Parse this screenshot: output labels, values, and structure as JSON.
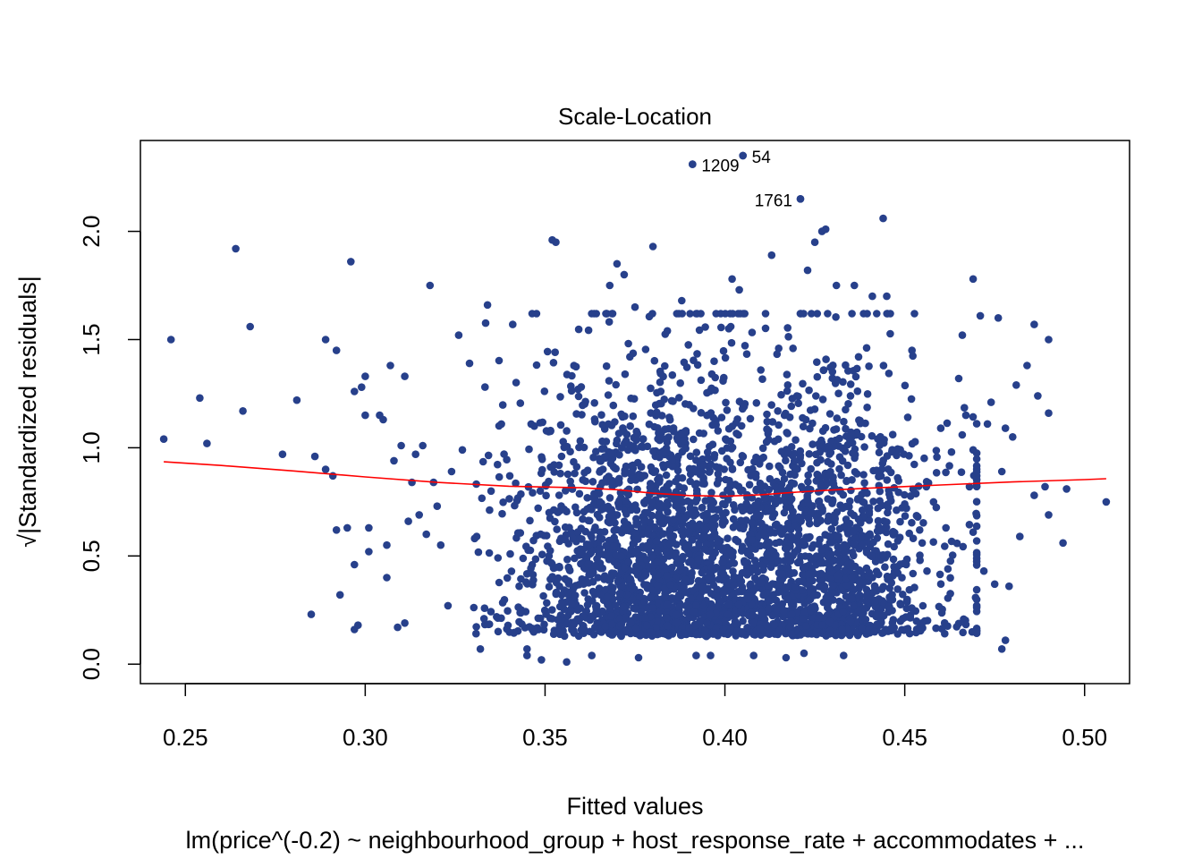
{
  "chart_data": {
    "type": "scatter",
    "title": "Scale-Location",
    "xlabel": "Fitted values",
    "ylabel": "√|Standardized residuals|",
    "subtitle": "lm(price^(-0.2) ~ neighbourhood_group + host_response_rate + accommodates + ...",
    "xlim": [
      0.2375,
      0.5125
    ],
    "ylim": [
      -0.09,
      2.42
    ],
    "x_ticks": [
      "0.25",
      "0.30",
      "0.35",
      "0.40",
      "0.45",
      "0.50"
    ],
    "x_tick_values": [
      0.25,
      0.3,
      0.35,
      0.4,
      0.45,
      0.5
    ],
    "y_ticks": [
      "0.0",
      "0.5",
      "1.0",
      "1.5",
      "2.0"
    ],
    "y_tick_values": [
      0.0,
      0.5,
      1.0,
      1.5,
      2.0
    ],
    "grid": false,
    "point_color": "#27408B",
    "smoother_color": "#FF0000",
    "points": [
      [
        0.244,
        1.04
      ],
      [
        0.246,
        1.5
      ],
      [
        0.254,
        1.23
      ],
      [
        0.256,
        1.02
      ],
      [
        0.264,
        1.92
      ],
      [
        0.266,
        1.17
      ],
      [
        0.268,
        1.56
      ],
      [
        0.277,
        0.97
      ],
      [
        0.281,
        1.22
      ],
      [
        0.285,
        0.23
      ],
      [
        0.286,
        0.96
      ],
      [
        0.289,
        0.9
      ],
      [
        0.289,
        1.5
      ],
      [
        0.291,
        0.87
      ],
      [
        0.292,
        1.45
      ],
      [
        0.292,
        0.62
      ],
      [
        0.293,
        0.32
      ],
      [
        0.295,
        0.63
      ],
      [
        0.296,
        1.86
      ],
      [
        0.297,
        1.26
      ],
      [
        0.297,
        0.46
      ],
      [
        0.297,
        0.16
      ],
      [
        0.298,
        0.18
      ],
      [
        0.299,
        1.28
      ],
      [
        0.3,
        1.15
      ],
      [
        0.3,
        1.33
      ],
      [
        0.301,
        0.63
      ],
      [
        0.301,
        0.52
      ],
      [
        0.304,
        1.15
      ],
      [
        0.305,
        1.13
      ],
      [
        0.306,
        0.4
      ],
      [
        0.306,
        0.55
      ],
      [
        0.307,
        1.38
      ],
      [
        0.308,
        0.94
      ],
      [
        0.309,
        0.17
      ],
      [
        0.31,
        1.01
      ],
      [
        0.311,
        0.19
      ],
      [
        0.311,
        1.33
      ],
      [
        0.312,
        0.66
      ],
      [
        0.313,
        0.84
      ],
      [
        0.314,
        0.97
      ],
      [
        0.315,
        0.69
      ],
      [
        0.316,
        1.01
      ],
      [
        0.317,
        0.6
      ],
      [
        0.318,
        1.75
      ],
      [
        0.319,
        0.84
      ],
      [
        0.32,
        0.73
      ],
      [
        0.321,
        0.55
      ],
      [
        0.323,
        0.27
      ],
      [
        0.324,
        0.89
      ],
      [
        0.326,
        1.52
      ],
      [
        0.327,
        0.99
      ],
      [
        0.329,
        1.39
      ],
      [
        0.331,
        0.59
      ],
      [
        0.332,
        0.07
      ],
      [
        0.334,
        1.66
      ],
      [
        0.335,
        0.8
      ],
      [
        0.341,
        1.57
      ],
      [
        0.345,
        0.07
      ],
      [
        0.345,
        0.04
      ],
      [
        0.347,
        1.1
      ],
      [
        0.349,
        0.02
      ],
      [
        0.352,
        1.96
      ],
      [
        0.353,
        1.95
      ],
      [
        0.356,
        0.01
      ],
      [
        0.36,
        0.51
      ],
      [
        0.363,
        0.04
      ],
      [
        0.368,
        1.75
      ],
      [
        0.37,
        1.85
      ],
      [
        0.372,
        1.8
      ],
      [
        0.375,
        1.65
      ],
      [
        0.376,
        0.03
      ],
      [
        0.38,
        1.93
      ],
      [
        0.384,
        1.54
      ],
      [
        0.388,
        1.68
      ],
      [
        0.391,
        2.31
      ],
      [
        0.392,
        0.04
      ],
      [
        0.396,
        0.04
      ],
      [
        0.397,
        1.4
      ],
      [
        0.402,
        1.78
      ],
      [
        0.404,
        1.73
      ],
      [
        0.405,
        2.35
      ],
      [
        0.408,
        0.04
      ],
      [
        0.413,
        1.89
      ],
      [
        0.417,
        0.03
      ],
      [
        0.421,
        2.15
      ],
      [
        0.422,
        0.05
      ],
      [
        0.423,
        1.82
      ],
      [
        0.425,
        1.95
      ],
      [
        0.427,
        2.0
      ],
      [
        0.428,
        2.01
      ],
      [
        0.431,
        1.75
      ],
      [
        0.433,
        0.04
      ],
      [
        0.436,
        1.75
      ],
      [
        0.441,
        1.7
      ],
      [
        0.444,
        2.06
      ],
      [
        0.445,
        1.7
      ],
      [
        0.446,
        1.62
      ],
      [
        0.45,
        0.74
      ],
      [
        0.452,
        1.45
      ],
      [
        0.456,
        0.82
      ],
      [
        0.458,
        0.75
      ],
      [
        0.46,
        1.09
      ],
      [
        0.462,
        0.44
      ],
      [
        0.463,
        0.98
      ],
      [
        0.465,
        1.32
      ],
      [
        0.466,
        1.52
      ],
      [
        0.467,
        1.15
      ],
      [
        0.468,
        0.82
      ],
      [
        0.469,
        1.78
      ],
      [
        0.469,
        0.61
      ],
      [
        0.47,
        0.27
      ],
      [
        0.471,
        1.61
      ],
      [
        0.472,
        0.43
      ],
      [
        0.473,
        1.11
      ],
      [
        0.474,
        1.21
      ],
      [
        0.475,
        0.37
      ],
      [
        0.476,
        1.6
      ],
      [
        0.477,
        0.89
      ],
      [
        0.477,
        0.07
      ],
      [
        0.478,
        1.09
      ],
      [
        0.478,
        0.11
      ],
      [
        0.479,
        0.36
      ],
      [
        0.48,
        1.05
      ],
      [
        0.481,
        1.29
      ],
      [
        0.482,
        0.59
      ],
      [
        0.484,
        1.38
      ],
      [
        0.486,
        1.57
      ],
      [
        0.486,
        0.78
      ],
      [
        0.487,
        1.24
      ],
      [
        0.489,
        0.82
      ],
      [
        0.49,
        0.69
      ],
      [
        0.49,
        1.16
      ],
      [
        0.49,
        1.5
      ],
      [
        0.494,
        0.56
      ],
      [
        0.495,
        0.81
      ],
      [
        0.506,
        0.75
      ]
    ],
    "cloud_note": "dense cloud of several thousand points concentrated at fitted values 0.33-0.45, residual scale 0.0-1.6",
    "labeled_points": [
      {
        "label": "1209",
        "x": 0.391,
        "y": 2.31
      },
      {
        "label": "54",
        "x": 0.405,
        "y": 2.35
      },
      {
        "label": "1761",
        "x": 0.421,
        "y": 2.15
      }
    ],
    "smoother": [
      [
        0.244,
        0.935
      ],
      [
        0.26,
        0.918
      ],
      [
        0.28,
        0.893
      ],
      [
        0.3,
        0.865
      ],
      [
        0.32,
        0.84
      ],
      [
        0.34,
        0.822
      ],
      [
        0.36,
        0.815
      ],
      [
        0.37,
        0.806
      ],
      [
        0.38,
        0.79
      ],
      [
        0.39,
        0.779
      ],
      [
        0.4,
        0.776
      ],
      [
        0.41,
        0.783
      ],
      [
        0.42,
        0.795
      ],
      [
        0.43,
        0.805
      ],
      [
        0.44,
        0.813
      ],
      [
        0.46,
        0.828
      ],
      [
        0.48,
        0.842
      ],
      [
        0.5,
        0.853
      ],
      [
        0.506,
        0.857
      ]
    ]
  }
}
